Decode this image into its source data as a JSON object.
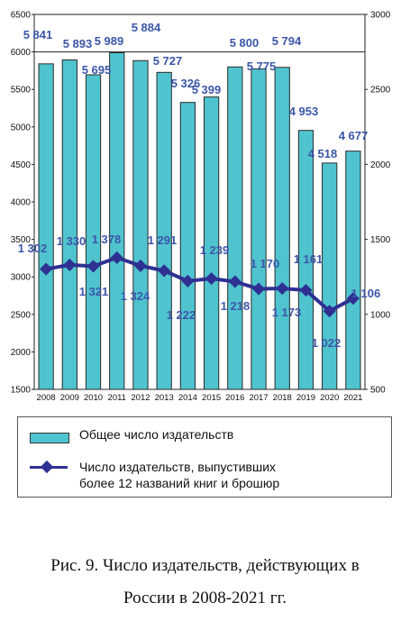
{
  "chart_data": {
    "type": "bar",
    "categories": [
      "2008",
      "2009",
      "2010",
      "2011",
      "2012",
      "2013",
      "2014",
      "2015",
      "2016",
      "2017",
      "2018",
      "2019",
      "2020",
      "2021"
    ],
    "series": [
      {
        "name": "Общее число издательств",
        "type": "bar",
        "axis": "left",
        "values": [
          5841,
          5893,
          5695,
          5989,
          5884,
          5727,
          5326,
          5399,
          5800,
          5775,
          5794,
          4953,
          4518,
          4677
        ],
        "labels": [
          "5 841",
          "5 893",
          "5 695",
          "5 989",
          "5 884",
          "5 727",
          "5 326",
          "5 399",
          "5 800",
          "5 775",
          "5 794",
          "4 953",
          "4 518",
          "4 677"
        ]
      },
      {
        "name": "Число издательств, выпустивших более 12 названий книг и брошюр",
        "type": "line",
        "axis": "right",
        "values": [
          1302,
          1330,
          1321,
          1378,
          1324,
          1291,
          1222,
          1239,
          1218,
          1170,
          1173,
          1161,
          1022,
          1106
        ],
        "labels": [
          "1 302",
          "1 330",
          "1 321",
          "1 378",
          "1 324",
          "1 291",
          "1 222",
          "1 239",
          "1 218",
          "1 170",
          "1 173",
          "1 161",
          "1 022",
          "1 106"
        ]
      }
    ],
    "ylim_left": [
      1500,
      6500
    ],
    "ylim_right": [
      500,
      3000
    ],
    "yticks_left": [
      "1500",
      "2000",
      "2500",
      "3000",
      "3500",
      "4000",
      "4500",
      "5000",
      "5500",
      "6000",
      "6500"
    ],
    "yticks_right": [
      "500",
      "1000",
      "1500",
      "2000",
      "2500",
      "3000"
    ],
    "grid": false,
    "legend": "bottom",
    "colors": {
      "bar": "#4fc4cf",
      "bar_edge": "#2a2a2a",
      "line": "#2e3192",
      "labels": "#3b56a8"
    }
  },
  "legend": {
    "bar_label": "Общее число издательств",
    "line_label_1": "Число издательств, выпустивших",
    "line_label_2": "более 12 названий книг и брошюр"
  },
  "caption": {
    "line1": "Рис. 9. Число издательств, действующих в",
    "line2": "России в 2008-2021 гг."
  }
}
